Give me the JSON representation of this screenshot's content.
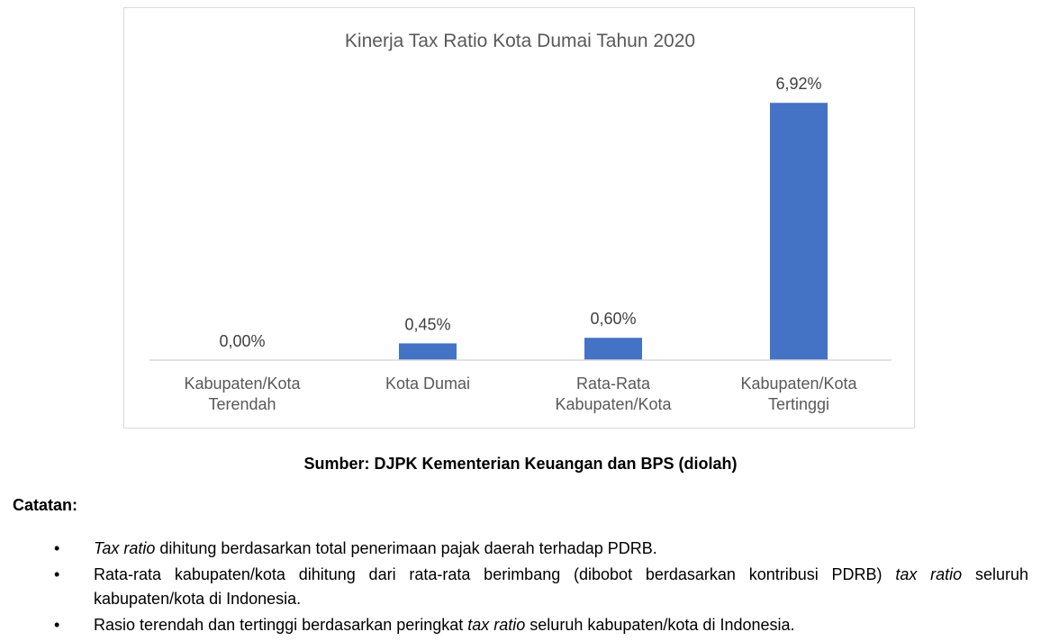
{
  "chart_data": {
    "type": "bar",
    "title": "Kinerja Tax Ratio Kota Dumai Tahun 2020",
    "categories": [
      [
        "Kabupaten/Kota",
        "Terendah"
      ],
      [
        "Kota Dumai"
      ],
      [
        "Rata-Rata",
        "Kabupaten/Kota"
      ],
      [
        "Kabupaten/Kota",
        "Tertinggi"
      ]
    ],
    "values": [
      0.0,
      0.45,
      0.6,
      6.92
    ],
    "data_labels": [
      "0,00%",
      "0,45%",
      "0,60%",
      "6,92%"
    ],
    "unit": "%",
    "ylim": [
      0,
      8.5
    ],
    "grid": false,
    "legend": "none",
    "bar_color": "#4472c4"
  },
  "source": "Sumber: DJPK Kementerian Keuangan dan BPS (diolah)",
  "notes": {
    "title": "Catatan:",
    "bullet_symbol": "•",
    "items": [
      [
        {
          "text": "Tax ratio",
          "italic": true
        },
        {
          "text": " dihitung berdasarkan total penerimaan pajak daerah terhadap PDRB.",
          "italic": false
        }
      ],
      [
        {
          "text": "Rata-rata kabupaten/kota dihitung dari rata-rata berimbang (dibobot berdasarkan kontribusi PDRB) ",
          "italic": false
        },
        {
          "text": "tax ratio",
          "italic": true
        },
        {
          "text": " seluruh kabupaten/kota di Indonesia.",
          "italic": false
        }
      ],
      [
        {
          "text": "Rasio terendah dan tertinggi berdasarkan peringkat ",
          "italic": false
        },
        {
          "text": "tax ratio",
          "italic": true
        },
        {
          "text": " seluruh kabupaten/kota di Indonesia.",
          "italic": false
        }
      ]
    ]
  }
}
